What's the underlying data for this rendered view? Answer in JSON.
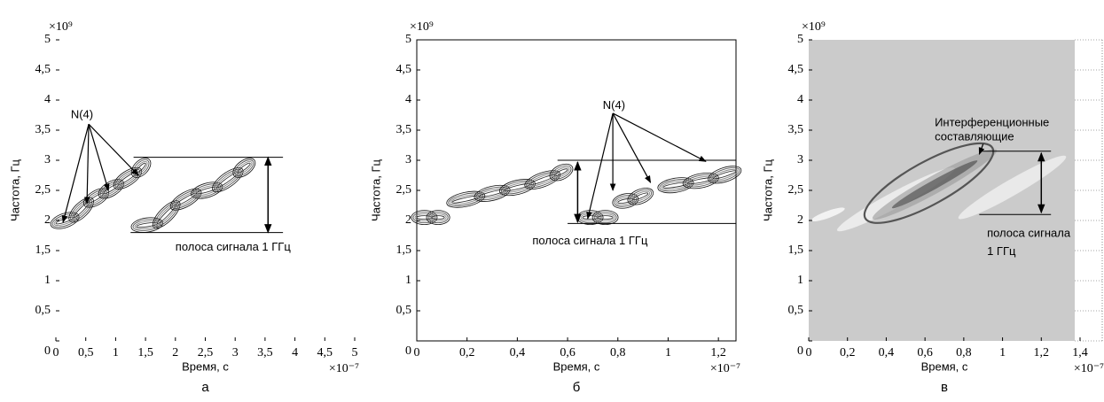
{
  "chart_data": [
    {
      "type": "contour",
      "panel_label": "а",
      "x_label": "Время, с",
      "y_label": "Частота, Гц",
      "x_scale": "×10⁻⁷",
      "y_scale": "×10⁹",
      "xlim": [
        0,
        5
      ],
      "ylim": [
        0,
        5
      ],
      "xticks": [
        0,
        {
          "value": 0.5,
          "label": "0,5"
        },
        1,
        {
          "value": 1.5,
          "label": "1,5"
        },
        2,
        {
          "value": 2.5,
          "label": "2,5"
        },
        3,
        {
          "value": 3.5,
          "label": "3,5"
        },
        4,
        {
          "value": 4.5,
          "label": "4,5"
        },
        5
      ],
      "yticks": [
        0,
        {
          "value": 0.5,
          "label": "0,5"
        },
        1,
        {
          "value": 1.5,
          "label": "1,5"
        },
        2,
        {
          "value": 2.5,
          "label": "2,5"
        },
        3,
        {
          "value": 3.5,
          "label": "3,5"
        },
        4,
        {
          "value": 4.5,
          "label": "4,5"
        },
        5
      ],
      "annotations": [
        "N(4)",
        "полоса сигнала 1 ГГц"
      ]
    },
    {
      "type": "contour",
      "panel_label": "б",
      "x_label": "Время, с",
      "y_label": "Частота, Гц",
      "x_scale": "×10⁻⁷",
      "y_scale": "×10⁹",
      "xlim": [
        0,
        1.27
      ],
      "ylim": [
        0,
        5
      ],
      "xticks": [
        0,
        {
          "value": 0.2,
          "label": "0,2"
        },
        {
          "value": 0.4,
          "label": "0,4"
        },
        {
          "value": 0.6,
          "label": "0,6"
        },
        {
          "value": 0.8,
          "label": "0,8"
        },
        1,
        {
          "value": 1.2,
          "label": "1,2"
        }
      ],
      "yticks": [
        0,
        {
          "value": 0.5,
          "label": "0,5"
        },
        1,
        {
          "value": 1.5,
          "label": "1,5"
        },
        2,
        {
          "value": 2.5,
          "label": "2,5"
        },
        3,
        {
          "value": 3.5,
          "label": "3,5"
        },
        4,
        {
          "value": 4.5,
          "label": "4,5"
        },
        5
      ],
      "annotations": [
        "N(4)",
        "полоса сигнала 1 ГГц"
      ]
    },
    {
      "type": "image",
      "panel_label": "в",
      "x_label": "Время, с",
      "y_label": "Частота, Гц",
      "x_scale": "×10⁻⁷",
      "y_scale": "×10⁹",
      "background": "#cbcbcb",
      "xlim": [
        0,
        1.4
      ],
      "ylim": [
        0,
        5
      ],
      "xticks": [
        0,
        {
          "value": 0.2,
          "label": "0,2"
        },
        {
          "value": 0.4,
          "label": "0,4"
        },
        {
          "value": 0.6,
          "label": "0,6"
        },
        {
          "value": 0.8,
          "label": "0,8"
        },
        1,
        {
          "value": 1.2,
          "label": "1,2"
        },
        {
          "value": 1.4,
          "label": "1,4"
        }
      ],
      "yticks": [
        0,
        {
          "value": 0.5,
          "label": "0,5"
        },
        1,
        {
          "value": 1.5,
          "label": "1,5"
        },
        2,
        {
          "value": 2.5,
          "label": "2,5"
        },
        3,
        {
          "value": 3.5,
          "label": "3,5"
        },
        4,
        {
          "value": 4.5,
          "label": "4,5"
        },
        5
      ],
      "annotations": [
        "Интерференционные",
        "составляющие",
        "полоса сигнала",
        "1 ГГц"
      ]
    }
  ]
}
